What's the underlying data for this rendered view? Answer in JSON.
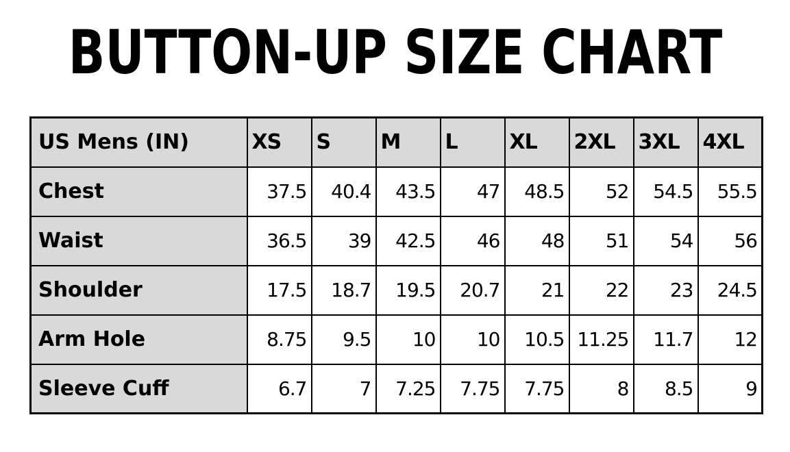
{
  "title": "BUTTON-UP SIZE CHART",
  "table": {
    "corner_label": "US Mens (IN)",
    "sizes": [
      "XS",
      "S",
      "M",
      "L",
      "XL",
      "2XL",
      "3XL",
      "4XL"
    ],
    "rows": [
      {
        "label": "Chest",
        "values": [
          "37.5",
          "40.4",
          "43.5",
          "47",
          "48.5",
          "52",
          "54.5",
          "55.5"
        ]
      },
      {
        "label": "Waist",
        "values": [
          "36.5",
          "39",
          "42.5",
          "46",
          "48",
          "51",
          "54",
          "56"
        ]
      },
      {
        "label": "Shoulder",
        "values": [
          "17.5",
          "18.7",
          "19.5",
          "20.7",
          "21",
          "22",
          "23",
          "24.5"
        ]
      },
      {
        "label": "Arm Hole",
        "values": [
          "8.75",
          "9.5",
          "10",
          "10",
          "10.5",
          "11.25",
          "11.7",
          "12"
        ]
      },
      {
        "label": "Sleeve Cuff",
        "values": [
          "6.7",
          "7",
          "7.25",
          "7.75",
          "7.75",
          "8",
          "8.5",
          "9"
        ]
      }
    ]
  },
  "colors": {
    "header_bg": "#d9d9d9",
    "border": "#000000"
  }
}
